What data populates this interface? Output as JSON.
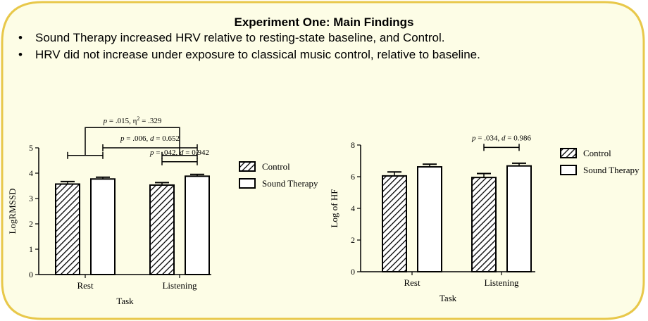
{
  "slide": {
    "title": "Experiment One: Main Findings",
    "bullets": [
      "Sound Therapy increased HRV relative to resting-state baseline, and Control.",
      "HRV did not increase under exposure to classical music control, relative to baseline."
    ],
    "bullet_symbol": "•"
  },
  "colors": {
    "frame_fill": "#fdfde6",
    "frame_border": "#e8c84a",
    "ink": "#000000"
  },
  "chart_data": [
    {
      "type": "bar",
      "categories": [
        "Rest",
        "Listening"
      ],
      "xlabel": "Task",
      "ylabel": "LogRMSSD",
      "ylim": [
        0,
        5
      ],
      "yticks": [
        0,
        1,
        2,
        3,
        4,
        5
      ],
      "series": [
        {
          "name": "Control",
          "pattern": "hatched",
          "values": [
            3.57,
            3.53
          ],
          "errors": [
            0.1,
            0.1
          ]
        },
        {
          "name": "Sound Therapy",
          "pattern": "open",
          "values": [
            3.77,
            3.88
          ],
          "errors": [
            0.07,
            0.07
          ]
        }
      ],
      "legend": "right",
      "annotations": [
        {
          "text": "p = .015, η² = .329",
          "level": 5.8,
          "connects": [
            [
              "Rest",
              0
            ],
            [
              "Rest",
              1
            ],
            [
              "Listening",
              0
            ],
            [
              "Listening",
              1
            ]
          ],
          "style": "nested"
        },
        {
          "text": "p = .006, d = 0.652",
          "level": 5.0,
          "connects": [
            [
              "Rest",
              1
            ],
            [
              "Listening",
              1
            ]
          ]
        },
        {
          "text": "p = .042, d = 0.942",
          "level": 4.45,
          "connects": [
            [
              "Listening",
              0
            ],
            [
              "Listening",
              1
            ]
          ]
        }
      ]
    },
    {
      "type": "bar",
      "categories": [
        "Rest",
        "Listening"
      ],
      "xlabel": "Task",
      "ylabel": "Log of HF",
      "ylim": [
        0,
        8
      ],
      "yticks": [
        0,
        2,
        4,
        6,
        8
      ],
      "series": [
        {
          "name": "Control",
          "pattern": "hatched",
          "values": [
            6.05,
            5.95
          ],
          "errors": [
            0.25,
            0.25
          ]
        },
        {
          "name": "Sound Therapy",
          "pattern": "open",
          "values": [
            6.62,
            6.68
          ],
          "errors": [
            0.17,
            0.17
          ]
        }
      ],
      "legend": "right",
      "annotations": [
        {
          "text": "p = .034, d = 0.986",
          "level": 7.85,
          "connects": [
            [
              "Listening",
              0
            ],
            [
              "Listening",
              1
            ]
          ]
        }
      ]
    }
  ]
}
